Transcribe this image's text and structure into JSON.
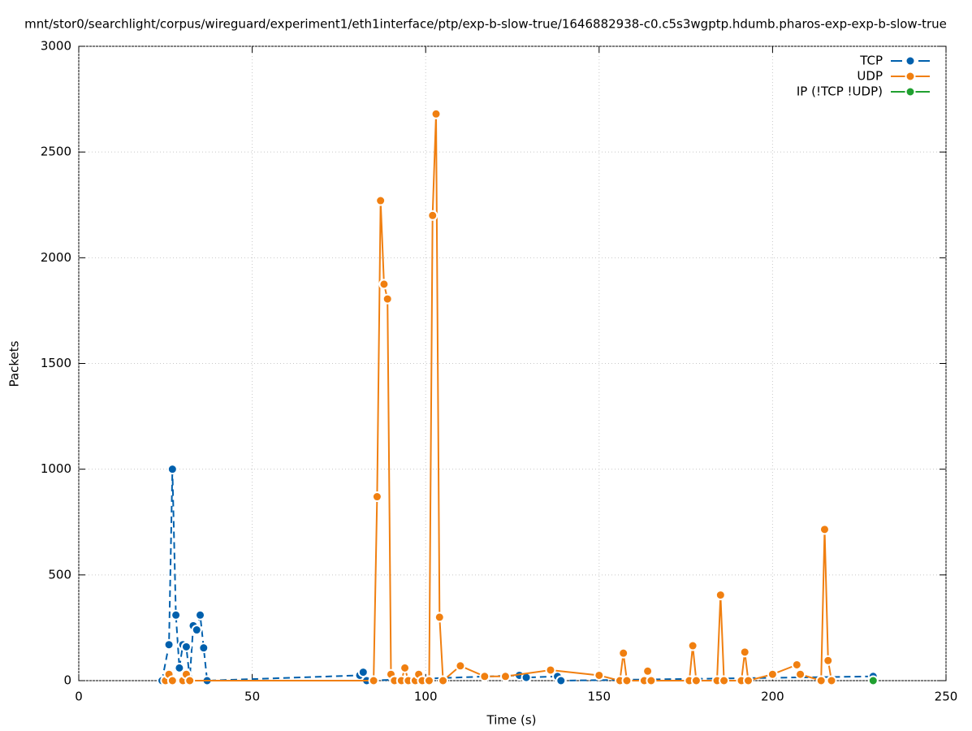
{
  "chart_data": {
    "type": "line",
    "title": "mnt/stor0/searchlight/corpus/wireguard/experiment1/eth1interface/ptp/exp-b-slow-true/1646882938-c0.c5s3wgptp.hdumb.pharos-exp-exp-b-slow-true",
    "xlabel": "Time (s)",
    "ylabel": "Packets",
    "xlim": [
      0,
      250
    ],
    "xticks": [
      0,
      50,
      100,
      150,
      200,
      250
    ],
    "ylim": [
      0,
      3000
    ],
    "yticks": [
      0,
      500,
      1000,
      1500,
      2000,
      2500,
      3000
    ],
    "grid": true,
    "legend": "top-right",
    "series": [
      {
        "name": "TCP",
        "color": "#0060ad",
        "dashed": true,
        "x": [
          24,
          26,
          27,
          28,
          29,
          30,
          31,
          32,
          33,
          34,
          35,
          36,
          37,
          81,
          82,
          83,
          127,
          129,
          138,
          139,
          229
        ],
        "values": [
          0,
          170,
          1000,
          310,
          60,
          170,
          160,
          10,
          260,
          240,
          310,
          155,
          0,
          25,
          40,
          0,
          25,
          15,
          20,
          0,
          20
        ]
      },
      {
        "name": "UDP",
        "color": "#f07f10",
        "dashed": false,
        "x": [
          25,
          26,
          27,
          30,
          31,
          32,
          85,
          86,
          87,
          88,
          89,
          90,
          91,
          93,
          94,
          95,
          97,
          98,
          99,
          101,
          102,
          103,
          104,
          105,
          110,
          117,
          123,
          136,
          150,
          156,
          157,
          158,
          163,
          164,
          165,
          176,
          177,
          178,
          184,
          185,
          186,
          191,
          192,
          193,
          200,
          207,
          208,
          214,
          215,
          216,
          217
        ],
        "values": [
          0,
          30,
          0,
          0,
          30,
          0,
          0,
          870,
          2270,
          1875,
          1805,
          30,
          0,
          0,
          60,
          0,
          0,
          30,
          0,
          0,
          2200,
          2680,
          300,
          0,
          70,
          20,
          20,
          50,
          25,
          0,
          130,
          0,
          0,
          45,
          0,
          0,
          165,
          0,
          0,
          405,
          0,
          0,
          135,
          0,
          30,
          75,
          30,
          0,
          715,
          95,
          0
        ]
      },
      {
        "name": "IP (!TCP  !UDP)",
        "color": "#20a030",
        "dashed": false,
        "x": [
          229
        ],
        "values": [
          0
        ]
      }
    ]
  }
}
